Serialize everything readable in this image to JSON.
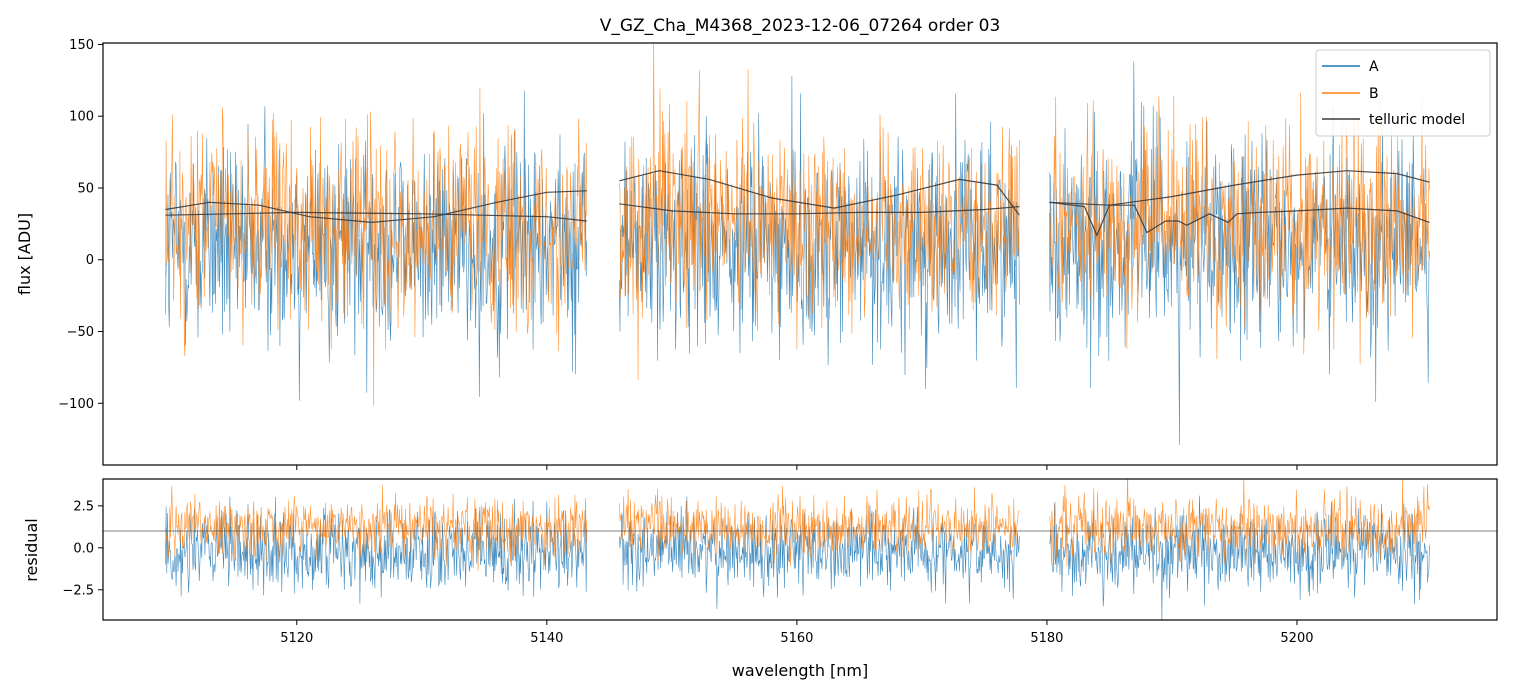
{
  "chart_data": {
    "type": "line",
    "title": "V_GZ_Cha_M4368_2023-12-06_07264  order 03",
    "xlabel": "wavelength [nm]",
    "xlim": [
      5104.5,
      5216
    ],
    "x_ticks": [
      5120,
      5140,
      5160,
      5180,
      5200
    ],
    "x_tick_labels": [
      "5120",
      "5140",
      "5160",
      "5180",
      "5200"
    ],
    "segments": [
      [
        5109.5,
        5143.2
      ],
      [
        5145.8,
        5177.8
      ],
      [
        5180.2,
        5210.6
      ]
    ],
    "colors": {
      "A": "#1f77b4",
      "B": "#ff7f0e",
      "telluric": "#3a3a3a",
      "zero_line": "#555555"
    },
    "legend": {
      "position": "upper right",
      "entries": [
        "A",
        "B",
        "telluric model"
      ]
    },
    "panels": [
      {
        "name": "flux",
        "ylabel": "flux [ADU]",
        "ylim": [
          -143,
          151
        ],
        "y_ticks": [
          -100,
          -50,
          0,
          50,
          100,
          150
        ],
        "y_tick_labels": [
          "−100",
          "−50",
          "0",
          "50",
          "100",
          "150"
        ],
        "series": [
          {
            "name": "A",
            "kind": "noisy",
            "center": 10,
            "spread": 60
          },
          {
            "name": "B",
            "kind": "noisy",
            "center": 25,
            "spread": 55
          },
          {
            "name": "telluric model",
            "x": [
              5109.5,
              5113,
              5117,
              5121,
              5126,
              5131,
              5136,
              5140,
              5143.2,
              null,
              5145.8,
              5149,
              5153,
              5158,
              5163,
              5168,
              5173,
              5176,
              5177.8,
              null,
              5180.2,
              5185,
              5190,
              5195,
              5200,
              5204,
              5208,
              5210.6
            ],
            "y": [
              35,
              40,
              38,
              30,
              26,
              30,
              40,
              47,
              48,
              null,
              55,
              62,
              56,
              43,
              36,
              45,
              56,
              52,
              31,
              null,
              40,
              38,
              44,
              52,
              59,
              62,
              60,
              54
            ]
          },
          {
            "name": "telluric model (second curve)",
            "x": [
              5109.5,
              5120,
              5130,
              5140,
              5143.2,
              null,
              5145.8,
              5150,
              5155,
              5160,
              5165,
              5170,
              5175,
              5177.8,
              null,
              5180.2,
              5183,
              5184,
              5185,
              5187,
              5188,
              5189.5,
              5190.5,
              5191.2,
              5193,
              5194.5,
              5195.2,
              5197,
              5200,
              5204,
              5208,
              5210.6
            ],
            "y": [
              31,
              33,
              32,
              30,
              27,
              null,
              39,
              34,
              32,
              32,
              33,
              33,
              35,
              37,
              null,
              40,
              37,
              17,
              38,
              38,
              19,
              27,
              27,
              24,
              32,
              26,
              32,
              33,
              34,
              36,
              34,
              26
            ]
          }
        ]
      },
      {
        "name": "residual",
        "ylabel": "residual",
        "ylim": [
          -4.3,
          4.1
        ],
        "y_ticks": [
          -2.5,
          0.0,
          2.5
        ],
        "y_tick_labels": [
          "−2.5",
          "0.0",
          "2.5"
        ],
        "reference_line": 1.0,
        "series": [
          {
            "name": "A",
            "kind": "noisy",
            "center": -0.2,
            "spread": 1.9
          },
          {
            "name": "B",
            "kind": "noisy",
            "center": 1.2,
            "spread": 1.5
          }
        ]
      }
    ]
  }
}
